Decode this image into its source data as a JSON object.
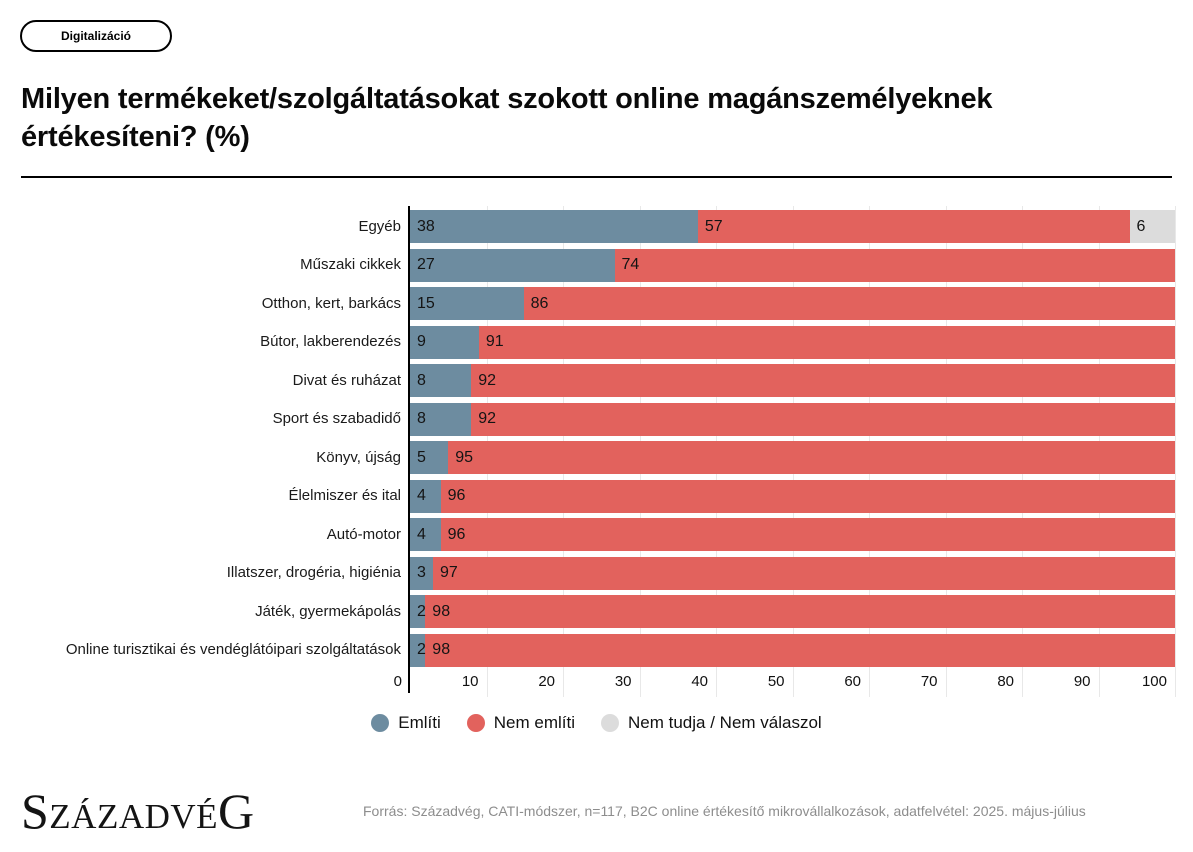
{
  "badge": {
    "label": "Digitalizáció"
  },
  "title": "Milyen termékeket/szolgáltatásokat szokott online magánszemélyeknek értékesíteni? (%)",
  "chart_data": {
    "type": "bar",
    "orientation": "horizontal",
    "stacked": true,
    "normalized_to_100": true,
    "title": "Milyen termékeket/szolgáltatásokat szokott online magánszemélyeknek értékesíteni? (%)",
    "categories": [
      "Egyéb",
      "Műszaki cikkek",
      "Otthon, kert, barkács",
      "Bútor, lakberendezés",
      "Divat és ruházat",
      "Sport és szabadidő",
      "Könyv, újság",
      "Élelmiszer és ital",
      "Autó-motor",
      "Illatszer, drogéria, higiénia",
      "Játék, gyermekápolás",
      "Online turisztikai és vendéglátóipari szolgáltatások"
    ],
    "series": [
      {
        "name": "Említi",
        "color": "#6d8ca0",
        "values": [
          38,
          27,
          15,
          9,
          8,
          8,
          5,
          4,
          4,
          3,
          2,
          2
        ]
      },
      {
        "name": "Nem említi",
        "color": "#e2625d",
        "values": [
          57,
          74,
          86,
          91,
          92,
          92,
          95,
          96,
          96,
          97,
          98,
          98
        ]
      },
      {
        "name": "Nem tudja / Nem válaszol",
        "color": "#dcdcdc",
        "values": [
          6,
          0,
          0,
          0,
          0,
          0,
          0,
          0,
          0,
          0,
          0,
          0
        ]
      }
    ],
    "x_ticks": [
      0,
      10,
      20,
      30,
      40,
      50,
      60,
      70,
      80,
      90,
      100
    ],
    "xlim": [
      0,
      100
    ],
    "xlabel": "",
    "ylabel": "",
    "grid": true,
    "legend_position": "bottom"
  },
  "footer": {
    "logo": "SzázadvéG",
    "source": "Forrás: Századvég, CATI-módszer, n=117, B2C online értékesítő mikrovállalkozások, adatfelvétel: 2025. május-július"
  }
}
